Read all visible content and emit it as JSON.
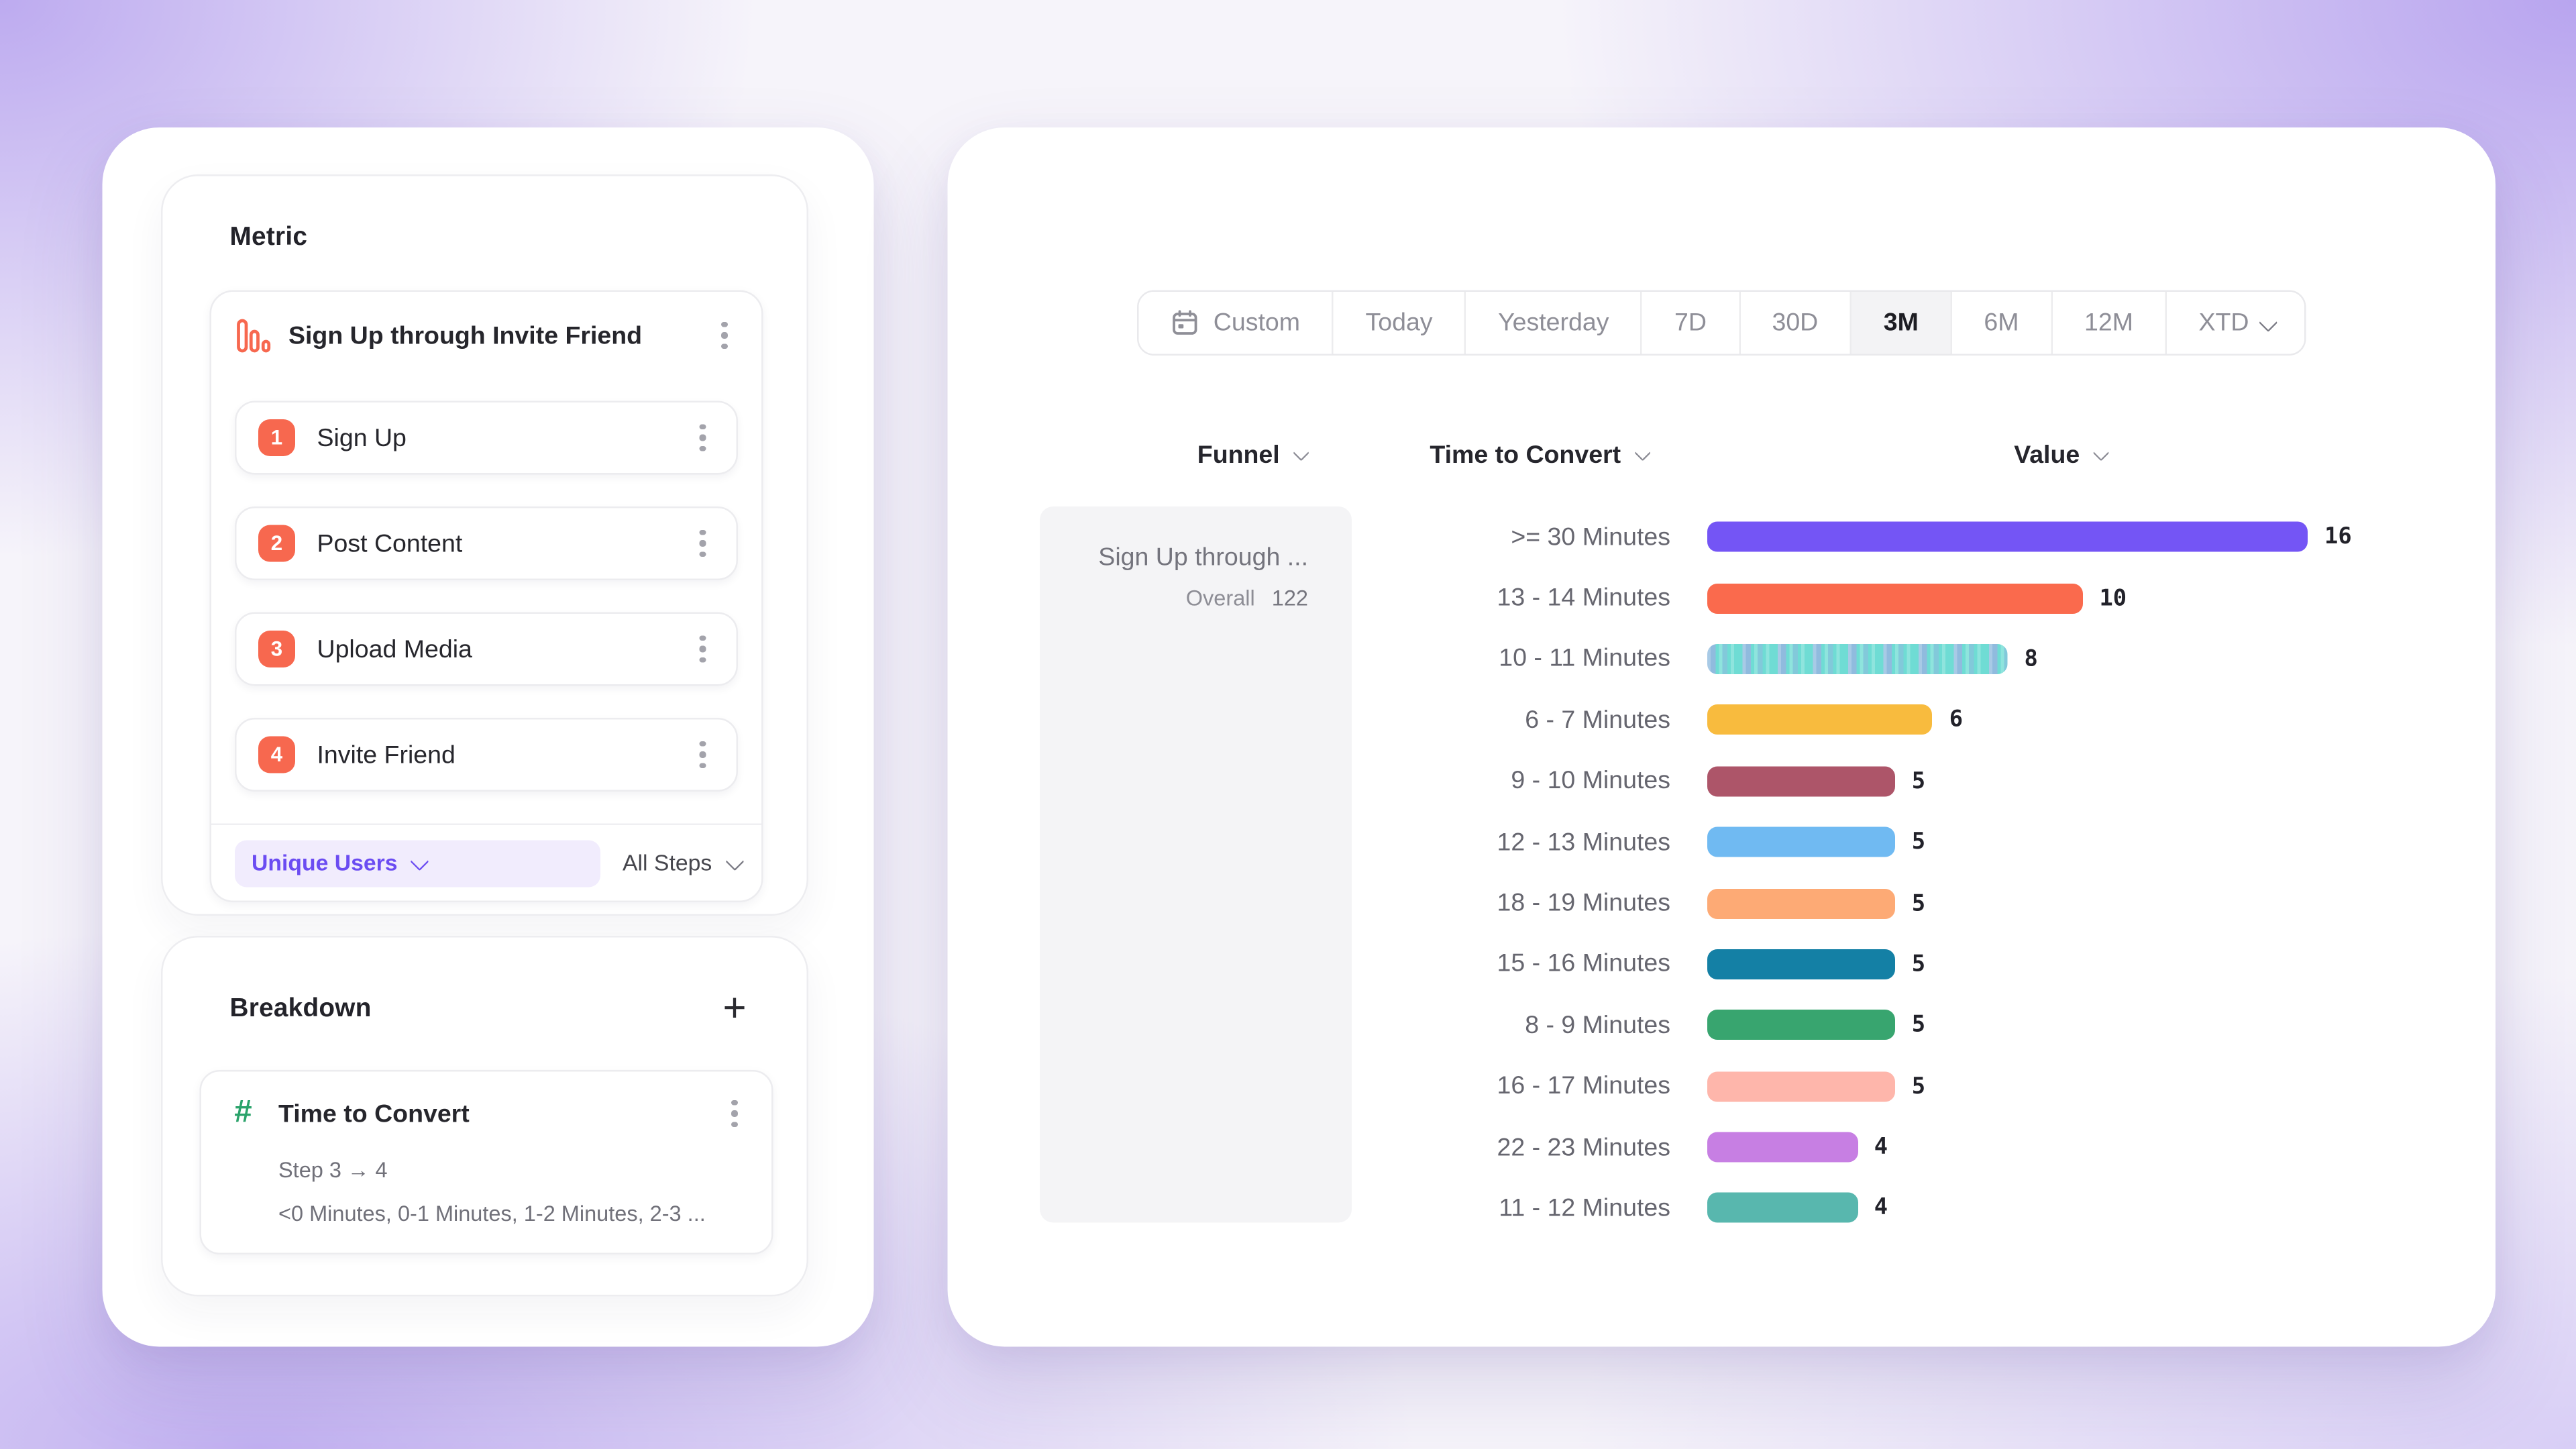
{
  "left_panel": {
    "metric": {
      "heading": "Metric",
      "funnel_name": "Sign Up through Invite Friend",
      "accent_color": "#f7684f",
      "steps": [
        {
          "num": "1",
          "label": "Sign Up"
        },
        {
          "num": "2",
          "label": "Post Content"
        },
        {
          "num": "3",
          "label": "Upload Media"
        },
        {
          "num": "4",
          "label": "Invite Friend"
        }
      ],
      "measurement": "Unique Users",
      "steps_scope": "All Steps"
    },
    "breakdown": {
      "heading": "Breakdown",
      "add_label": "+",
      "property": "Time to Convert",
      "property_icon_color": "#2ba36b",
      "step_range": "Step 3 → 4",
      "buckets_preview": "<0 Minutes, 0-1 Minutes, 1-2 Minutes, 2-3 ..."
    }
  },
  "right_panel": {
    "date_ranges": [
      {
        "label": "Custom",
        "icon": "calendar-icon"
      },
      {
        "label": "Today"
      },
      {
        "label": "Yesterday"
      },
      {
        "label": "7D"
      },
      {
        "label": "30D"
      },
      {
        "label": "3M",
        "selected": true
      },
      {
        "label": "6M"
      },
      {
        "label": "12M"
      },
      {
        "label": "XTD",
        "chevron": true
      }
    ],
    "table": {
      "columns": [
        "Funnel",
        "Time to Convert",
        "Value"
      ],
      "funnel": {
        "name": "Sign Up through ...",
        "overall_label": "Overall",
        "overall_value": "122"
      }
    },
    "chart_data": {
      "type": "bar",
      "orientation": "horizontal",
      "categories": [
        ">= 30 Minutes",
        "13 - 14 Minutes",
        "10 - 11 Minutes",
        "6 - 7 Minutes",
        "9 - 10 Minutes",
        "12 - 13 Minutes",
        "18 - 19 Minutes",
        "15 - 16 Minutes",
        "8 - 9 Minutes",
        "16 - 17 Minutes",
        "22 - 23 Minutes",
        "11 - 12 Minutes"
      ],
      "values": [
        16,
        10,
        8,
        6,
        5,
        5,
        5,
        5,
        5,
        5,
        4,
        4
      ],
      "colors": [
        "#7455f5",
        "#fa6a4d",
        "#6fdcd4",
        "#f8bb3e",
        "#ad5569",
        "#70baf2",
        "#fdaa75",
        "#1480a5",
        "#38a56f",
        "#feb6ab",
        "#c77fe3",
        "#58b7ae"
      ],
      "patterned_index": 2,
      "xlim": [
        0,
        16
      ],
      "value_labels_shown": true,
      "legend": "none",
      "grid": false
    }
  }
}
